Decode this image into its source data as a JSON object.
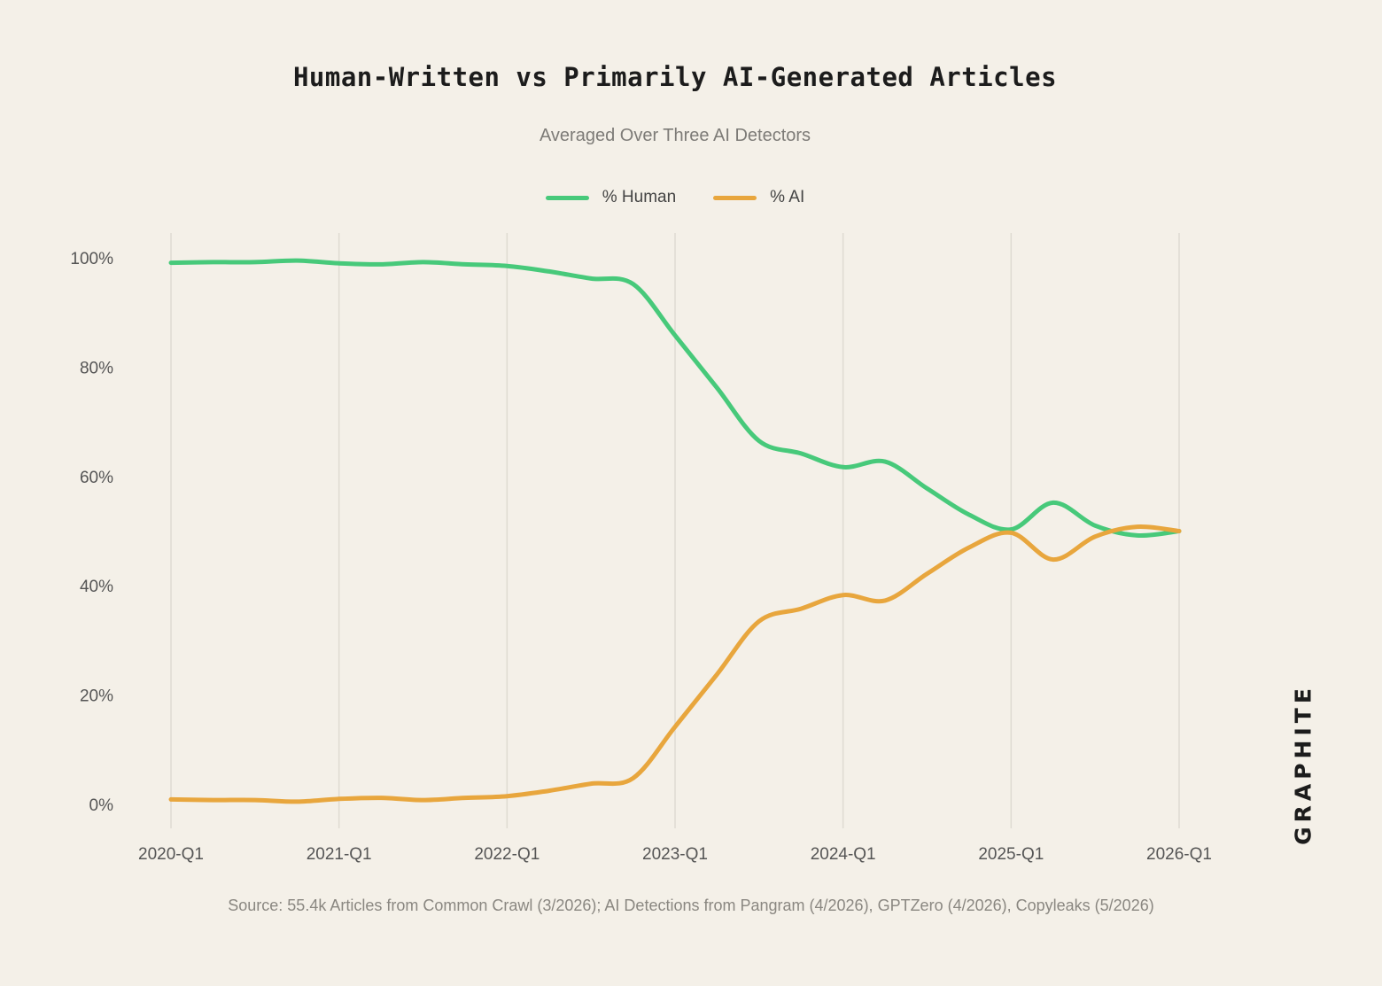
{
  "chart_data": {
    "type": "line",
    "title": "Human-Written vs Primarily AI-Generated Articles",
    "subtitle": "Averaged Over Three AI Detectors",
    "x": [
      "2020-Q1",
      "2020-Q2",
      "2020-Q3",
      "2020-Q4",
      "2021-Q1",
      "2021-Q2",
      "2021-Q3",
      "2021-Q4",
      "2022-Q1",
      "2022-Q2",
      "2022-Q3",
      "2022-Q4",
      "2023-Q1",
      "2023-Q2",
      "2023-Q3",
      "2023-Q4",
      "2024-Q1",
      "2024-Q2",
      "2024-Q3",
      "2024-Q4",
      "2025-Q1",
      "2025-Q2",
      "2025-Q3",
      "2025-Q4",
      "2026-Q1"
    ],
    "x_tick_labels": [
      "2020-Q1",
      "2021-Q1",
      "2022-Q1",
      "2023-Q1",
      "2024-Q1",
      "2025-Q1",
      "2026-Q1"
    ],
    "y_tick_labels": [
      "0%",
      "20%",
      "40%",
      "60%",
      "80%",
      "100%"
    ],
    "ylim": [
      0,
      100
    ],
    "series": [
      {
        "name": "% Human",
        "color": "#47c97a",
        "values": [
          99.1,
          99.2,
          99.2,
          99.5,
          99.0,
          98.8,
          99.2,
          98.8,
          98.5,
          97.5,
          96.2,
          95.2,
          85.8,
          76.2,
          66.5,
          64.2,
          61.7,
          62.7,
          57.8,
          53.0,
          50.3,
          55.2,
          51.0,
          49.2,
          50.0
        ]
      },
      {
        "name": "% AI",
        "color": "#e8a63d",
        "values": [
          0.9,
          0.8,
          0.8,
          0.5,
          1.0,
          1.2,
          0.8,
          1.2,
          1.5,
          2.5,
          3.8,
          4.8,
          14.2,
          23.8,
          33.5,
          35.8,
          38.3,
          37.3,
          42.2,
          47.0,
          49.7,
          44.8,
          49.0,
          50.8,
          50.0
        ]
      }
    ],
    "grid": "vertical",
    "legend_position": "top-center"
  },
  "source": "Source: 55.4k Articles from Common Crawl (3/2026); AI Detections from Pangram (4/2026), GPTZero (4/2026), Copyleaks (5/2026)",
  "logo_text": "GRAPHITE",
  "colors": {
    "background": "#f4f0e8",
    "grid": "#dfdbd2"
  }
}
